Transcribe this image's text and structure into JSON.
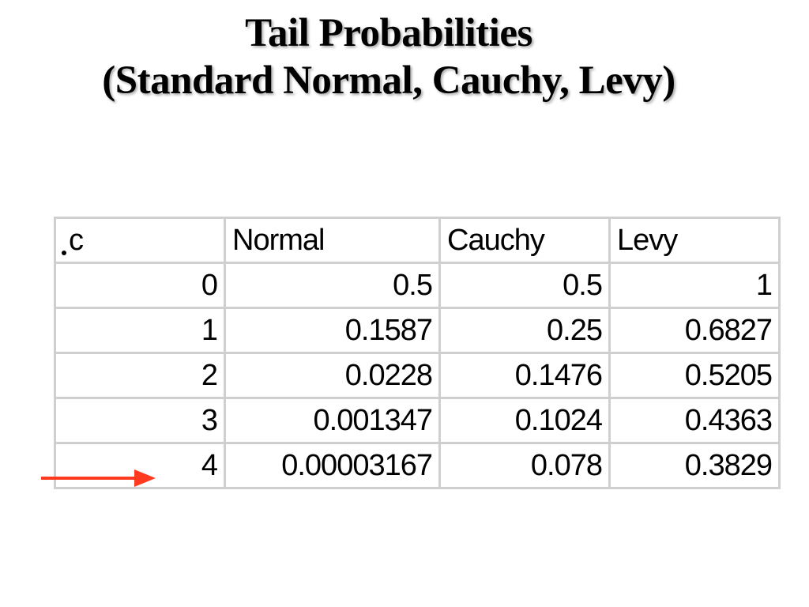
{
  "slide": {
    "title_line1": "Tail Probabilities",
    "title_line2": "(Standard Normal, Cauchy, Levy)"
  },
  "table": {
    "headers": [
      "c",
      "Normal",
      "Cauchy",
      "Levy"
    ],
    "rows": [
      [
        "0",
        "0.5",
        "0.5",
        "1"
      ],
      [
        "1",
        "0.1587",
        "0.25",
        "0.6827"
      ],
      [
        "2",
        "0.0228",
        "0.1476",
        "0.5205"
      ],
      [
        "3",
        "0.001347",
        "0.1024",
        "0.4363"
      ],
      [
        "4",
        "0.00003167",
        "0.078",
        "0.3829"
      ]
    ]
  },
  "colors": {
    "arrow": "#ff3a1f",
    "grid": "#cfcfcf",
    "text": "#000000"
  },
  "icons": {
    "pointer": "right-arrow-icon",
    "bullet": "bullet-dot-icon"
  }
}
